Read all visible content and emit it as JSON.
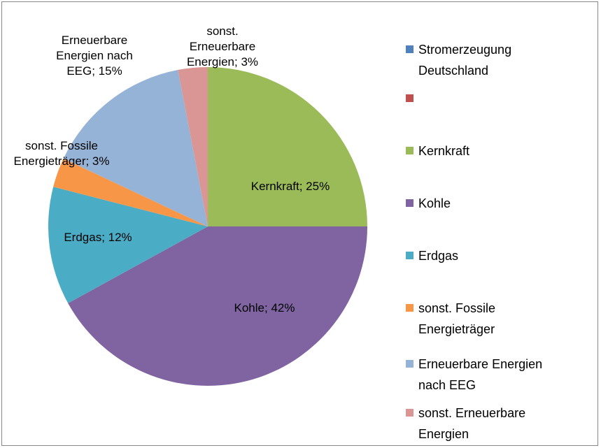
{
  "chart_data": {
    "type": "pie",
    "categories": [
      "Stromerzeugung Deutschland",
      null,
      "Kernkraft",
      "Kohle",
      "Erdgas",
      "sonst. Fossile Energieträger",
      "Erneuerbare Energien nach EEG",
      "sonst. Erneuerbare Energien"
    ],
    "values": [
      0,
      0,
      25,
      42,
      12,
      3,
      15,
      3
    ],
    "value_labels": [
      null,
      null,
      "Kernkraft; 25%",
      "Kohle; 42%",
      "Erdgas; 12%",
      "sonst. Fossile Energieträger; 3%",
      "Erneuerbare Energien nach EEG; 15%",
      "sonst. Erneuerbare Energien; 3%"
    ],
    "colors": [
      "#4f81bd",
      "#c0504d",
      "#9bbb59",
      "#8064a2",
      "#4bacc6",
      "#f79646",
      "#95b3d7",
      "#d99694"
    ],
    "legend": "right"
  }
}
